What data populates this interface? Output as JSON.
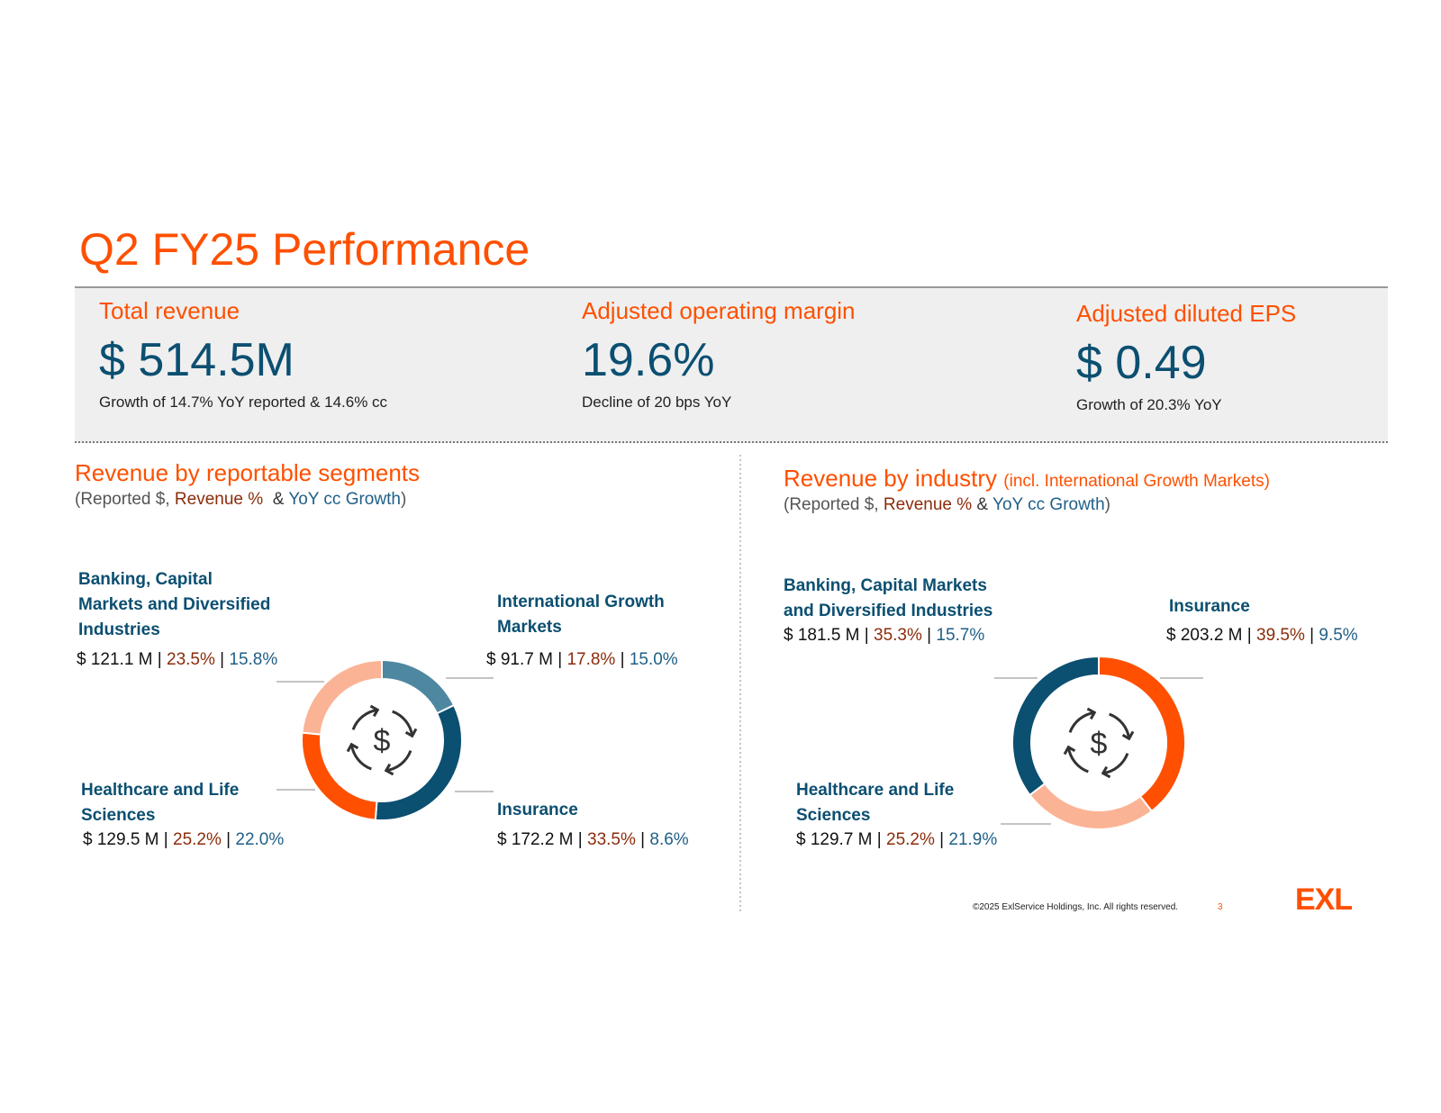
{
  "title": "Q2 FY25 Performance",
  "kpis": [
    {
      "label": "Total revenue",
      "value": "$ 514.5M",
      "note": "Growth of 14.7% YoY reported & 14.6% cc"
    },
    {
      "label": "Adjusted operating margin",
      "value": "19.6%",
      "note": "Decline of 20 bps YoY"
    },
    {
      "label": "Adjusted diluted EPS",
      "value": "$ 0.49",
      "note": "Growth of 20.3% YoY"
    }
  ],
  "chart_data": [
    {
      "type": "donut",
      "title": "Revenue by reportable segments",
      "subtitle": [
        "(Reported $, ",
        "Revenue % ",
        " & ",
        "YoY cc Growth",
        ")"
      ],
      "center_icon": "$",
      "categories": [
        "International Growth Markets",
        "Insurance",
        "Healthcare and Life Sciences",
        "Banking, Capital Markets and Diversified Industries"
      ],
      "values": [
        17.8,
        33.5,
        25.2,
        23.5
      ],
      "value_labels": [
        "17.8%",
        "33.5%",
        "25.2%",
        "23.5%"
      ],
      "amounts": [
        "$ 91.7 M",
        "$ 172.2 M",
        "$ 129.5 M",
        "$ 121.1 M"
      ],
      "growth": [
        "15.0%",
        "8.6%",
        "22.0%",
        "15.8%"
      ],
      "colors": [
        "#4e87a0",
        "#0b4f71",
        "#fe5000",
        "#fbb395"
      ]
    },
    {
      "type": "donut",
      "title": "Revenue by industry",
      "title_note": "(incl. International Growth Markets)",
      "subtitle": [
        "(Reported $, ",
        "Revenue %",
        " & ",
        "YoY cc Growth",
        ")"
      ],
      "center_icon": "$",
      "categories": [
        "Insurance",
        "Healthcare and Life Sciences",
        "Banking, Capital Markets and Diversified Industries"
      ],
      "values": [
        39.5,
        25.2,
        35.3
      ],
      "value_labels": [
        "39.5%",
        "25.2%",
        "35.3%"
      ],
      "amounts": [
        "$ 203.2 M",
        "$ 129.7 M",
        "$ 181.5 M"
      ],
      "growth": [
        "9.5%",
        "21.9%",
        "15.7%"
      ],
      "colors": [
        "#fe5000",
        "#fbb395",
        "#0b4f71"
      ]
    }
  ],
  "footer": {
    "copyright": "©2025 ExlService Holdings, Inc. All rights reserved.",
    "page": "3",
    "logo": "EXL"
  }
}
